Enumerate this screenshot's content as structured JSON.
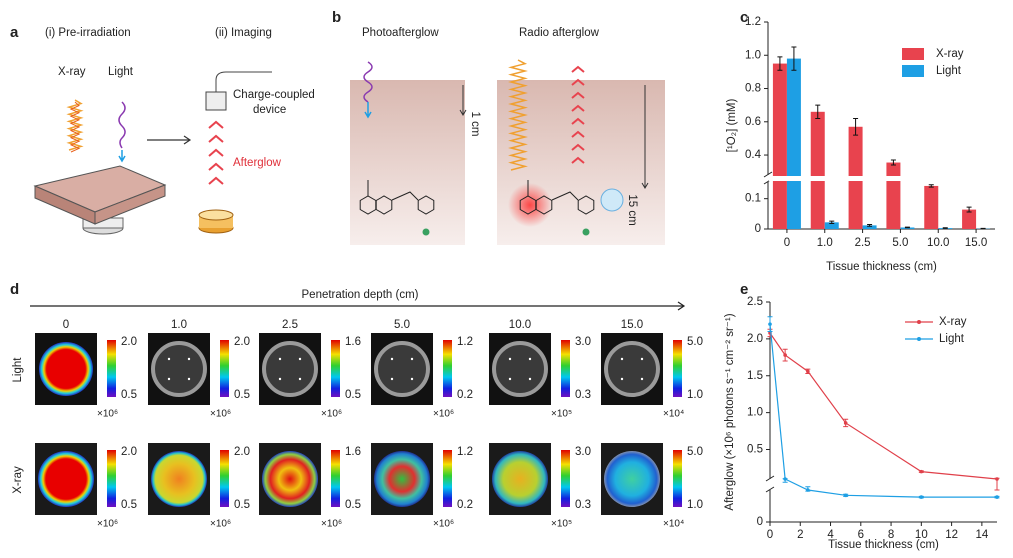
{
  "panel_a": {
    "label": "a",
    "step1": "(i) Pre-irradiation",
    "step2": "(ii) Imaging",
    "xray": "X-ray",
    "light": "Light",
    "detector": [
      "Charge-coupled",
      "device"
    ],
    "afterglow": "Afterglow"
  },
  "panel_b": {
    "label": "b",
    "left_title": "Photoafterglow",
    "right_title": "Radio afterglow",
    "left_depth": "1 cm",
    "right_depth": "15 cm"
  },
  "panel_d": {
    "label": "d",
    "axis_title": "Penetration depth (cm)",
    "rows": [
      "Light",
      "X-ray"
    ],
    "columns": [
      {
        "depth": "0",
        "scale_max": "2.0",
        "scale_min": "0.5",
        "unit": "×10⁶"
      },
      {
        "depth": "1.0",
        "scale_max": "2.0",
        "scale_min": "0.5",
        "unit": "×10⁶"
      },
      {
        "depth": "2.5",
        "scale_max": "1.6",
        "scale_min": "0.5",
        "unit": "×10⁶"
      },
      {
        "depth": "5.0",
        "scale_max": "1.2",
        "scale_min": "0.2",
        "unit": "×10⁶"
      },
      {
        "depth": "10.0",
        "scale_max": "3.0",
        "scale_min": "0.3",
        "unit": "×10⁵"
      },
      {
        "depth": "15.0",
        "scale_max": "5.0",
        "scale_min": "1.0",
        "unit": "×10⁴"
      }
    ]
  },
  "chart_data": [
    {
      "type": "bar",
      "panel_label": "c",
      "xlabel": "Tissue thickness (cm)",
      "ylabel": "[¹O₂] (mM)",
      "categories": [
        "0",
        "1.0",
        "2.5",
        "5.0",
        "10.0",
        "15.0"
      ],
      "series": [
        {
          "name": "X-ray",
          "color": "#e8434e",
          "values": [
            0.95,
            0.66,
            0.57,
            0.355,
            0.142,
            0.064
          ],
          "errors": [
            0.04,
            0.04,
            0.05,
            0.015,
            0.004,
            0.008
          ]
        },
        {
          "name": "Light",
          "color": "#1e9fe4",
          "values": [
            0.98,
            0.022,
            0.012,
            0.005,
            0.003,
            0.001
          ],
          "errors": [
            0.07,
            0.004,
            0.003,
            0.001,
            0.001,
            0.001
          ]
        }
      ],
      "ylim": [
        0,
        1.2
      ],
      "y_break": [
        0.155,
        0.28
      ],
      "yticks": [
        0,
        {
          "value": 0.1,
          "label": "0.1"
        },
        {
          "value": 0.4,
          "label": "0.4"
        },
        {
          "value": 0.6,
          "label": "0.6"
        },
        {
          "value": 0.8,
          "label": "0.8"
        },
        {
          "value": 1,
          "label": "1.0"
        },
        {
          "value": 1.2,
          "label": "1.2"
        }
      ],
      "legend": "upper right"
    },
    {
      "type": "line",
      "panel_label": "e",
      "xlabel": "Tissue thickness (cm)",
      "ylabel": "Afterglow (×10⁶ photons s⁻¹ cm⁻² sr⁻¹)",
      "x": [
        0,
        1,
        2.5,
        5,
        10,
        15
      ],
      "series": [
        {
          "name": "X-ray",
          "color": "#e0404a",
          "values": [
            2.08,
            1.78,
            1.56,
            0.86,
            0.2,
            0.1
          ],
          "errors": [
            0.05,
            0.08,
            0.03,
            0.05,
            0.01,
            0.01
          ]
        },
        {
          "name": "Light",
          "color": "#1e9fe4",
          "values": [
            2.2,
            0.1,
            0.09,
            0.075,
            0.07,
            0.07
          ],
          "errors": [
            0.1,
            0.003,
            0.003,
            0.003,
            0.002,
            0.002
          ]
        }
      ],
      "xlim": [
        0,
        15
      ],
      "xticks": [
        0,
        2,
        4,
        6,
        8,
        10,
        12,
        14
      ],
      "ylim": [
        0,
        2.5
      ],
      "y_break": [
        0.09,
        0.1
      ],
      "yticks": [
        0,
        {
          "value": 0.5,
          "label": "0.5"
        },
        {
          "value": 1,
          "label": "1.0"
        },
        {
          "value": 1.5,
          "label": "1.5"
        },
        {
          "value": 2,
          "label": "2.0"
        },
        {
          "value": 2.5,
          "label": "2.5"
        }
      ],
      "legend": "upper right"
    }
  ]
}
